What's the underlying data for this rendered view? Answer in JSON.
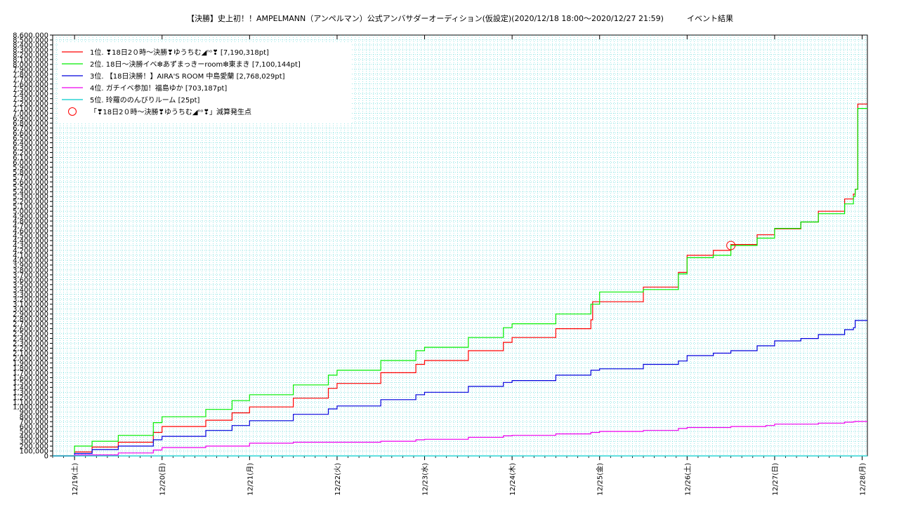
{
  "chart_data": {
    "type": "line",
    "title": "【決勝】史上初！！AMPELMANN（アンペルマン）公式アンバサダーオーディション(仮設定)(2020/12/18 18:00〜2020/12/27 21:59)　　　イベント結果",
    "xlabel": "",
    "ylabel": "",
    "ylim": [
      0,
      8600000
    ],
    "xlim": [
      0,
      9.06
    ],
    "grid": true,
    "legend_position": "top-left",
    "x_tick_labels": [
      "12/19(土)",
      "12/20(日)",
      "12/21(月)",
      "12/22(火)",
      "12/23(水)",
      "12/24(木)",
      "12/25(金)",
      "12/26(土)",
      "12/27(日)",
      "12/28(月)"
    ],
    "y_tick_labels": [
      "0",
      "100,000",
      "200,000",
      "300,000",
      "400,000",
      "500,000",
      "600,000",
      "700,000",
      "800,000",
      "900,000",
      "1,000,000",
      "1,100,000",
      "1,200,000",
      "1,300,000",
      "1,400,000",
      "1,500,000",
      "1,600,000",
      "1,700,000",
      "1,800,000",
      "1,900,000",
      "2,000,000",
      "2,100,000",
      "2,200,000",
      "2,300,000",
      "2,400,000",
      "2,500,000",
      "2,600,000",
      "2,700,000",
      "2,800,000",
      "2,900,000",
      "3,000,000",
      "3,100,000",
      "3,200,000",
      "3,300,000",
      "3,400,000",
      "3,500,000",
      "3,600,000",
      "3,700,000",
      "3,800,000",
      "3,900,000",
      "4,000,000",
      "4,100,000",
      "4,200,000",
      "4,300,000",
      "4,400,000",
      "4,500,000",
      "4,600,000",
      "4,700,000",
      "4,800,000",
      "4,900,000",
      "5,000,000",
      "5,100,000",
      "5,200,000",
      "5,300,000",
      "5,400,000",
      "5,500,000",
      "5,600,000",
      "5,700,000",
      "5,800,000",
      "5,900,000",
      "6,000,000",
      "6,100,000",
      "6,200,000",
      "6,300,000",
      "6,400,000",
      "6,500,000",
      "6,600,000",
      "6,700,000",
      "6,800,000",
      "6,900,000",
      "7,000,000",
      "7,100,000",
      "7,200,000",
      "7,300,000",
      "7,400,000",
      "7,500,000",
      "7,600,000",
      "7,700,000",
      "7,800,000",
      "7,900,000",
      "8,000,000",
      "8,100,000",
      "8,200,000",
      "8,300,000",
      "8,400,000",
      "8,500,000",
      "8,600,000"
    ],
    "series": [
      {
        "name": "1位. ❣18日2０時〜決勝❣ゆうちむ◢ⁿᵒ❣ [7,190,318pt]",
        "color": "#ff0000",
        "x": [
          -0.25,
          0,
          0.2,
          0.5,
          0.9,
          1.0,
          1.5,
          1.8,
          2.0,
          2.5,
          2.9,
          3.0,
          3.5,
          3.9,
          4.0,
          4.5,
          4.9,
          5.0,
          5.5,
          5.9,
          5.92,
          6.0,
          6.5,
          6.9,
          7.0,
          7.3,
          7.5,
          7.8,
          8.0,
          8.3,
          8.5,
          8.8,
          8.9,
          8.92,
          8.95,
          9.06
        ],
        "y": [
          0,
          80000,
          180000,
          280000,
          480000,
          600000,
          730000,
          880000,
          1000000,
          1180000,
          1380000,
          1480000,
          1700000,
          1870000,
          1950000,
          2150000,
          2320000,
          2420000,
          2600000,
          2780000,
          3150000,
          3150000,
          3450000,
          3750000,
          4100000,
          4200000,
          4320000,
          4520000,
          4640000,
          4780000,
          5000000,
          5250000,
          5350000,
          5450000,
          7190318,
          7190318
        ]
      },
      {
        "name": "2位. 18日〜決勝イベ❇あずまっきーroom❇東まき [7,100,144pt]",
        "color": "#00ee00",
        "x": [
          -0.25,
          0,
          0.2,
          0.5,
          0.9,
          1.0,
          1.5,
          1.8,
          2.0,
          2.5,
          2.9,
          3.0,
          3.5,
          3.9,
          4.0,
          4.5,
          4.9,
          5.0,
          5.5,
          5.9,
          6.0,
          6.5,
          6.9,
          7.0,
          7.3,
          7.5,
          7.8,
          8.0,
          8.3,
          8.5,
          8.8,
          8.9,
          8.92,
          8.95,
          9.06
        ],
        "y": [
          0,
          200000,
          300000,
          420000,
          680000,
          800000,
          950000,
          1130000,
          1250000,
          1450000,
          1650000,
          1750000,
          1950000,
          2150000,
          2220000,
          2420000,
          2620000,
          2700000,
          2900000,
          3100000,
          3350000,
          3400000,
          3720000,
          4050000,
          4100000,
          4300000,
          4450000,
          4650000,
          4780000,
          4950000,
          5150000,
          5300000,
          5450000,
          7100144,
          7100144
        ]
      },
      {
        "name": "3位. 【18日決勝！】AIRA'S ROOM 中島愛蘭 [2,768,029pt]",
        "color": "#0000dd",
        "x": [
          -0.25,
          0,
          0.2,
          0.5,
          0.9,
          1.0,
          1.5,
          1.8,
          2.0,
          2.5,
          2.9,
          3.0,
          3.5,
          3.9,
          4.0,
          4.5,
          4.9,
          5.0,
          5.5,
          5.9,
          6.0,
          6.5,
          6.9,
          7.0,
          7.3,
          7.5,
          7.8,
          8.0,
          8.3,
          8.5,
          8.8,
          8.9,
          8.92,
          9.06
        ],
        "y": [
          0,
          50000,
          130000,
          200000,
          330000,
          400000,
          520000,
          620000,
          720000,
          850000,
          960000,
          1020000,
          1150000,
          1250000,
          1300000,
          1420000,
          1500000,
          1540000,
          1650000,
          1750000,
          1780000,
          1870000,
          1940000,
          2050000,
          2100000,
          2150000,
          2250000,
          2350000,
          2400000,
          2480000,
          2580000,
          2620000,
          2768029,
          2768029
        ]
      },
      {
        "name": "4位. ガチイベ参加！福島ゆか [703,187pt]",
        "color": "#ee00ee",
        "x": [
          -0.25,
          0,
          0.5,
          0.9,
          1.0,
          1.5,
          2.0,
          2.5,
          2.9,
          3.0,
          3.5,
          3.9,
          4.0,
          4.5,
          4.9,
          5.0,
          5.5,
          5.9,
          6.0,
          6.5,
          6.9,
          7.0,
          7.5,
          7.9,
          8.0,
          8.5,
          8.8,
          8.9,
          8.92,
          9.06
        ],
        "y": [
          0,
          20000,
          60000,
          120000,
          170000,
          200000,
          260000,
          280000,
          280000,
          280000,
          300000,
          330000,
          340000,
          380000,
          410000,
          420000,
          450000,
          480000,
          500000,
          520000,
          560000,
          580000,
          600000,
          620000,
          650000,
          670000,
          690000,
          700000,
          703187,
          703187
        ]
      },
      {
        "name": "5位. 玲羅ののんびりルーム [25pt]",
        "color": "#00cccc",
        "x": [
          -0.25,
          9.06
        ],
        "y": [
          25,
          25
        ]
      }
    ],
    "annotation": {
      "label": "「❣18日2０時〜決勝❣ゆうちむ◢ⁿᵒ❣」減算発生点",
      "x": 7.5,
      "y": 4300000,
      "color": "#ff0000",
      "marker": "circle"
    }
  }
}
